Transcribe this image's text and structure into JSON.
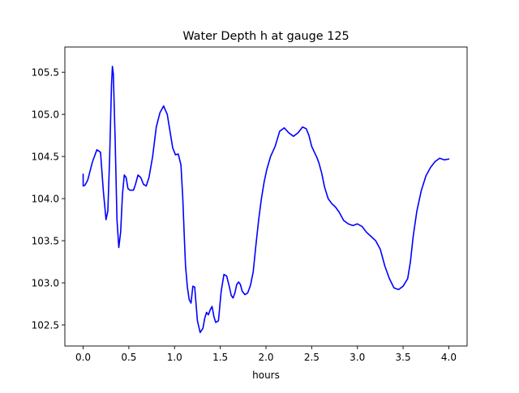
{
  "chart_data": {
    "type": "line",
    "title": "Water Depth h at gauge 125",
    "xlabel": "hours",
    "ylabel": "",
    "xlim": [
      -0.2,
      4.2
    ],
    "ylim": [
      102.25,
      105.8
    ],
    "x_ticks": [
      0.0,
      0.5,
      1.0,
      1.5,
      2.0,
      2.5,
      3.0,
      3.5,
      4.0
    ],
    "x_tick_labels": [
      "0.0",
      "0.5",
      "1.0",
      "1.5",
      "2.0",
      "2.5",
      "3.0",
      "3.5",
      "4.0"
    ],
    "y_ticks": [
      102.5,
      103.0,
      103.5,
      104.0,
      104.5,
      105.0,
      105.5
    ],
    "y_tick_labels": [
      "102.5",
      "103.0",
      "103.5",
      "104.0",
      "104.5",
      "105.0",
      "105.5"
    ],
    "grid": false,
    "series": [
      {
        "color": "#0000ff",
        "x": [
          0.0,
          0.0,
          0.02,
          0.05,
          0.1,
          0.15,
          0.19,
          0.22,
          0.25,
          0.27,
          0.29,
          0.31,
          0.32,
          0.33,
          0.35,
          0.37,
          0.39,
          0.41,
          0.43,
          0.45,
          0.47,
          0.49,
          0.51,
          0.53,
          0.55,
          0.57,
          0.6,
          0.63,
          0.66,
          0.69,
          0.72,
          0.76,
          0.8,
          0.84,
          0.88,
          0.92,
          0.95,
          0.98,
          1.01,
          1.04,
          1.07,
          1.09,
          1.11,
          1.12,
          1.14,
          1.16,
          1.18,
          1.2,
          1.22,
          1.25,
          1.28,
          1.31,
          1.33,
          1.35,
          1.37,
          1.39,
          1.41,
          1.43,
          1.45,
          1.48,
          1.51,
          1.54,
          1.57,
          1.6,
          1.62,
          1.64,
          1.66,
          1.68,
          1.7,
          1.72,
          1.74,
          1.77,
          1.8,
          1.83,
          1.86,
          1.89,
          1.92,
          1.95,
          1.98,
          2.01,
          2.05,
          2.1,
          2.15,
          2.2,
          2.25,
          2.3,
          2.35,
          2.4,
          2.44,
          2.47,
          2.5,
          2.53,
          2.56,
          2.58,
          2.61,
          2.64,
          2.68,
          2.72,
          2.76,
          2.8,
          2.85,
          2.9,
          2.95,
          3.0,
          3.05,
          3.1,
          3.15,
          3.2,
          3.25,
          3.3,
          3.35,
          3.4,
          3.45,
          3.5,
          3.55,
          3.58,
          3.61,
          3.65,
          3.7,
          3.75,
          3.8,
          3.85,
          3.9,
          3.95,
          4.0
        ],
        "y": [
          104.29,
          104.15,
          104.16,
          104.22,
          104.43,
          104.58,
          104.55,
          104.1,
          103.75,
          103.85,
          104.5,
          105.35,
          105.57,
          105.48,
          104.7,
          103.75,
          103.42,
          103.6,
          104.05,
          104.28,
          104.25,
          104.12,
          104.1,
          104.1,
          104.1,
          104.16,
          104.28,
          104.25,
          104.17,
          104.15,
          104.25,
          104.5,
          104.85,
          105.02,
          105.1,
          105.0,
          104.8,
          104.6,
          104.52,
          104.53,
          104.4,
          104.0,
          103.45,
          103.2,
          102.95,
          102.8,
          102.76,
          102.96,
          102.95,
          102.55,
          102.41,
          102.46,
          102.58,
          102.65,
          102.62,
          102.68,
          102.72,
          102.6,
          102.53,
          102.55,
          102.9,
          103.1,
          103.08,
          102.95,
          102.85,
          102.82,
          102.88,
          102.98,
          103.01,
          102.98,
          102.9,
          102.86,
          102.88,
          102.97,
          103.13,
          103.45,
          103.75,
          104.0,
          104.2,
          104.35,
          104.5,
          104.62,
          104.8,
          104.84,
          104.78,
          104.74,
          104.78,
          104.85,
          104.83,
          104.75,
          104.62,
          104.55,
          104.48,
          104.42,
          104.3,
          104.14,
          104.0,
          103.94,
          103.9,
          103.84,
          103.74,
          103.7,
          103.68,
          103.7,
          103.67,
          103.6,
          103.55,
          103.5,
          103.4,
          103.2,
          103.05,
          102.94,
          102.92,
          102.96,
          103.05,
          103.25,
          103.55,
          103.85,
          104.1,
          104.27,
          104.37,
          104.44,
          104.48,
          104.46,
          104.47
        ]
      }
    ]
  }
}
